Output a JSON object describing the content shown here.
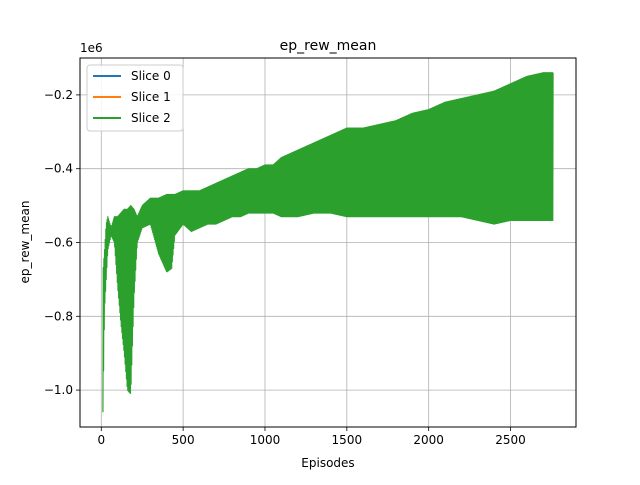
{
  "chart_data": {
    "type": "line",
    "title": "ep_rew_mean",
    "xlabel": "Episodes",
    "ylabel": "ep_rew_mean",
    "y_offset_label": "1e6",
    "xlim": [
      -130,
      2900
    ],
    "ylim": [
      -1.1,
      -0.1
    ],
    "x_ticks": [
      0,
      500,
      1000,
      1500,
      2000,
      2500
    ],
    "x_tick_labels": [
      "0",
      "500",
      "1000",
      "1500",
      "2000",
      "2500"
    ],
    "y_ticks": [
      -1.0,
      -0.8,
      -0.6,
      -0.4,
      -0.2
    ],
    "y_tick_labels": [
      "−1.0",
      "−0.8",
      "−0.6",
      "−0.4",
      "−0.2"
    ],
    "grid": true,
    "legend_position": "top-left",
    "series": [
      {
        "name": "Slice 0",
        "color": "#1f77b4"
      },
      {
        "name": "Slice 1",
        "color": "#ff7f0e"
      },
      {
        "name": "Slice 2",
        "color": "#2ca02c",
        "x": [
          10,
          20,
          30,
          40,
          60,
          80,
          100,
          120,
          140,
          160,
          180,
          200,
          220,
          250,
          300,
          350,
          400,
          430,
          450,
          500,
          550,
          600,
          650,
          700,
          750,
          800,
          850,
          900,
          950,
          1000,
          1050,
          1100,
          1150,
          1200,
          1300,
          1400,
          1500,
          1600,
          1700,
          1800,
          1900,
          2000,
          2100,
          2200,
          2300,
          2400,
          2500,
          2600,
          2700,
          2760
        ],
        "y_low": [
          -1.06,
          -0.78,
          -0.7,
          -0.62,
          -0.58,
          -0.6,
          -0.72,
          -0.82,
          -0.9,
          -1.0,
          -1.01,
          -0.75,
          -0.6,
          -0.56,
          -0.55,
          -0.63,
          -0.68,
          -0.67,
          -0.58,
          -0.55,
          -0.57,
          -0.56,
          -0.55,
          -0.55,
          -0.54,
          -0.53,
          -0.53,
          -0.52,
          -0.52,
          -0.52,
          -0.52,
          -0.53,
          -0.53,
          -0.53,
          -0.52,
          -0.52,
          -0.53,
          -0.53,
          -0.53,
          -0.53,
          -0.53,
          -0.53,
          -0.53,
          -0.53,
          -0.54,
          -0.55,
          -0.54,
          -0.54,
          -0.54,
          -0.54
        ],
        "y_high": [
          -0.68,
          -0.62,
          -0.55,
          -0.53,
          -0.56,
          -0.53,
          -0.53,
          -0.52,
          -0.51,
          -0.51,
          -0.5,
          -0.51,
          -0.53,
          -0.5,
          -0.48,
          -0.48,
          -0.47,
          -0.47,
          -0.47,
          -0.46,
          -0.46,
          -0.46,
          -0.45,
          -0.44,
          -0.43,
          -0.42,
          -0.41,
          -0.4,
          -0.4,
          -0.39,
          -0.39,
          -0.37,
          -0.36,
          -0.35,
          -0.33,
          -0.31,
          -0.29,
          -0.29,
          -0.28,
          -0.27,
          -0.25,
          -0.24,
          -0.22,
          -0.21,
          -0.2,
          -0.19,
          -0.17,
          -0.15,
          -0.14,
          -0.14
        ]
      }
    ]
  }
}
